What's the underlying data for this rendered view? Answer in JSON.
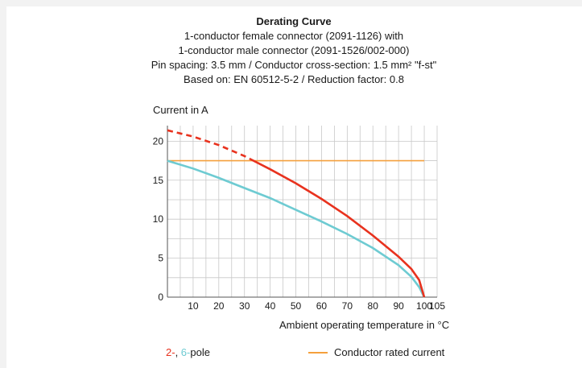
{
  "chart_data": {
    "type": "line",
    "title": "Derating Curve",
    "subtitle_lines": [
      "1-conductor female connector (2091-1126) with",
      "1-conductor male connector (2091-1526/002-000)",
      "Pin spacing: 3.5 mm / Conductor cross-section: 1.5 mm² \"f-st\"",
      "Based on: EN 60512-5-2 / Reduction factor: 0.8"
    ],
    "ylabel": "Current in A",
    "xlabel": "Ambient operating temperature in °C",
    "xlim": [
      0,
      105
    ],
    "ylim": [
      0,
      22
    ],
    "x_ticks": [
      "10",
      "20",
      "30",
      "40",
      "50",
      "60",
      "70",
      "80",
      "90",
      "100",
      "105"
    ],
    "x_tick_values": [
      10,
      20,
      30,
      40,
      50,
      60,
      70,
      80,
      90,
      100,
      105
    ],
    "y_ticks": [
      "0",
      "5",
      "10",
      "15",
      "20"
    ],
    "y_tick_values": [
      0,
      5,
      10,
      15,
      20
    ],
    "grid": true,
    "series": [
      {
        "color": "#e8321e",
        "dashed_until_x": 32,
        "points": [
          [
            0,
            21.4
          ],
          [
            10,
            20.6
          ],
          [
            20,
            19.5
          ],
          [
            30,
            18.1
          ],
          [
            40,
            16.4
          ],
          [
            50,
            14.6
          ],
          [
            60,
            12.6
          ],
          [
            70,
            10.4
          ],
          [
            80,
            7.9
          ],
          [
            90,
            5.2
          ],
          [
            95,
            3.6
          ],
          [
            98,
            2.2
          ],
          [
            100,
            0
          ]
        ]
      },
      {
        "color": "#6ecbd2",
        "points": [
          [
            0,
            17.5
          ],
          [
            10,
            16.5
          ],
          [
            20,
            15.3
          ],
          [
            30,
            14.0
          ],
          [
            40,
            12.7
          ],
          [
            50,
            11.2
          ],
          [
            60,
            9.7
          ],
          [
            70,
            8.1
          ],
          [
            80,
            6.3
          ],
          [
            90,
            4.1
          ],
          [
            95,
            2.6
          ],
          [
            98,
            1.3
          ],
          [
            100,
            0
          ]
        ]
      },
      {
        "color": "#f5a03c",
        "points": [
          [
            0,
            17.5
          ],
          [
            100,
            17.5
          ]
        ]
      }
    ],
    "legend": {
      "pole_a": "2-",
      "pole_sep": ", ",
      "pole_b": "6-",
      "pole_text": "pole",
      "pole_a_color": "#e8321e",
      "pole_b_color": "#6ecbd2",
      "rated_label": "Conductor rated current",
      "rated_color": "#f5a03c"
    }
  }
}
